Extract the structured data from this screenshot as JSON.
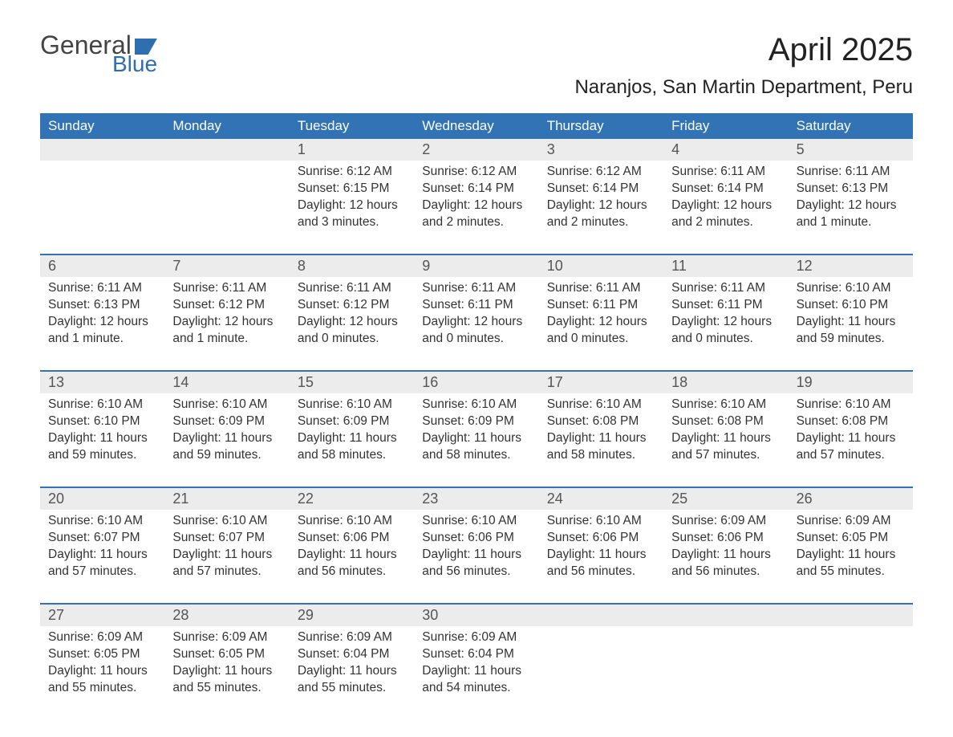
{
  "logo": {
    "text1": "General",
    "text2": "Blue"
  },
  "title": "April 2025",
  "location": "Naranjos, San Martin Department, Peru",
  "colors": {
    "header_bg": "#3173b5",
    "header_text": "#ffffff",
    "daynum_bg": "#ececec",
    "body_text": "#333333",
    "logo_blue": "#2f6fb0"
  },
  "day_labels": [
    "Sunday",
    "Monday",
    "Tuesday",
    "Wednesday",
    "Thursday",
    "Friday",
    "Saturday"
  ],
  "weeks": [
    {
      "nums": [
        "",
        "",
        "1",
        "2",
        "3",
        "4",
        "5"
      ],
      "cells": [
        {
          "sunrise": "",
          "sunset": "",
          "daylight": ""
        },
        {
          "sunrise": "",
          "sunset": "",
          "daylight": ""
        },
        {
          "sunrise": "6:12 AM",
          "sunset": "6:15 PM",
          "daylight": "12 hours and 3 minutes."
        },
        {
          "sunrise": "6:12 AM",
          "sunset": "6:14 PM",
          "daylight": "12 hours and 2 minutes."
        },
        {
          "sunrise": "6:12 AM",
          "sunset": "6:14 PM",
          "daylight": "12 hours and 2 minutes."
        },
        {
          "sunrise": "6:11 AM",
          "sunset": "6:14 PM",
          "daylight": "12 hours and 2 minutes."
        },
        {
          "sunrise": "6:11 AM",
          "sunset": "6:13 PM",
          "daylight": "12 hours and 1 minute."
        }
      ]
    },
    {
      "nums": [
        "6",
        "7",
        "8",
        "9",
        "10",
        "11",
        "12"
      ],
      "cells": [
        {
          "sunrise": "6:11 AM",
          "sunset": "6:13 PM",
          "daylight": "12 hours and 1 minute."
        },
        {
          "sunrise": "6:11 AM",
          "sunset": "6:12 PM",
          "daylight": "12 hours and 1 minute."
        },
        {
          "sunrise": "6:11 AM",
          "sunset": "6:12 PM",
          "daylight": "12 hours and 0 minutes."
        },
        {
          "sunrise": "6:11 AM",
          "sunset": "6:11 PM",
          "daylight": "12 hours and 0 minutes."
        },
        {
          "sunrise": "6:11 AM",
          "sunset": "6:11 PM",
          "daylight": "12 hours and 0 minutes."
        },
        {
          "sunrise": "6:11 AM",
          "sunset": "6:11 PM",
          "daylight": "12 hours and 0 minutes."
        },
        {
          "sunrise": "6:10 AM",
          "sunset": "6:10 PM",
          "daylight": "11 hours and 59 minutes."
        }
      ]
    },
    {
      "nums": [
        "13",
        "14",
        "15",
        "16",
        "17",
        "18",
        "19"
      ],
      "cells": [
        {
          "sunrise": "6:10 AM",
          "sunset": "6:10 PM",
          "daylight": "11 hours and 59 minutes."
        },
        {
          "sunrise": "6:10 AM",
          "sunset": "6:09 PM",
          "daylight": "11 hours and 59 minutes."
        },
        {
          "sunrise": "6:10 AM",
          "sunset": "6:09 PM",
          "daylight": "11 hours and 58 minutes."
        },
        {
          "sunrise": "6:10 AM",
          "sunset": "6:09 PM",
          "daylight": "11 hours and 58 minutes."
        },
        {
          "sunrise": "6:10 AM",
          "sunset": "6:08 PM",
          "daylight": "11 hours and 58 minutes."
        },
        {
          "sunrise": "6:10 AM",
          "sunset": "6:08 PM",
          "daylight": "11 hours and 57 minutes."
        },
        {
          "sunrise": "6:10 AM",
          "sunset": "6:08 PM",
          "daylight": "11 hours and 57 minutes."
        }
      ]
    },
    {
      "nums": [
        "20",
        "21",
        "22",
        "23",
        "24",
        "25",
        "26"
      ],
      "cells": [
        {
          "sunrise": "6:10 AM",
          "sunset": "6:07 PM",
          "daylight": "11 hours and 57 minutes."
        },
        {
          "sunrise": "6:10 AM",
          "sunset": "6:07 PM",
          "daylight": "11 hours and 57 minutes."
        },
        {
          "sunrise": "6:10 AM",
          "sunset": "6:06 PM",
          "daylight": "11 hours and 56 minutes."
        },
        {
          "sunrise": "6:10 AM",
          "sunset": "6:06 PM",
          "daylight": "11 hours and 56 minutes."
        },
        {
          "sunrise": "6:10 AM",
          "sunset": "6:06 PM",
          "daylight": "11 hours and 56 minutes."
        },
        {
          "sunrise": "6:09 AM",
          "sunset": "6:06 PM",
          "daylight": "11 hours and 56 minutes."
        },
        {
          "sunrise": "6:09 AM",
          "sunset": "6:05 PM",
          "daylight": "11 hours and 55 minutes."
        }
      ]
    },
    {
      "nums": [
        "27",
        "28",
        "29",
        "30",
        "",
        "",
        ""
      ],
      "cells": [
        {
          "sunrise": "6:09 AM",
          "sunset": "6:05 PM",
          "daylight": "11 hours and 55 minutes."
        },
        {
          "sunrise": "6:09 AM",
          "sunset": "6:05 PM",
          "daylight": "11 hours and 55 minutes."
        },
        {
          "sunrise": "6:09 AM",
          "sunset": "6:04 PM",
          "daylight": "11 hours and 55 minutes."
        },
        {
          "sunrise": "6:09 AM",
          "sunset": "6:04 PM",
          "daylight": "11 hours and 54 minutes."
        },
        {
          "sunrise": "",
          "sunset": "",
          "daylight": ""
        },
        {
          "sunrise": "",
          "sunset": "",
          "daylight": ""
        },
        {
          "sunrise": "",
          "sunset": "",
          "daylight": ""
        }
      ]
    }
  ],
  "labels": {
    "sunrise": "Sunrise: ",
    "sunset": "Sunset: ",
    "daylight": "Daylight: "
  }
}
